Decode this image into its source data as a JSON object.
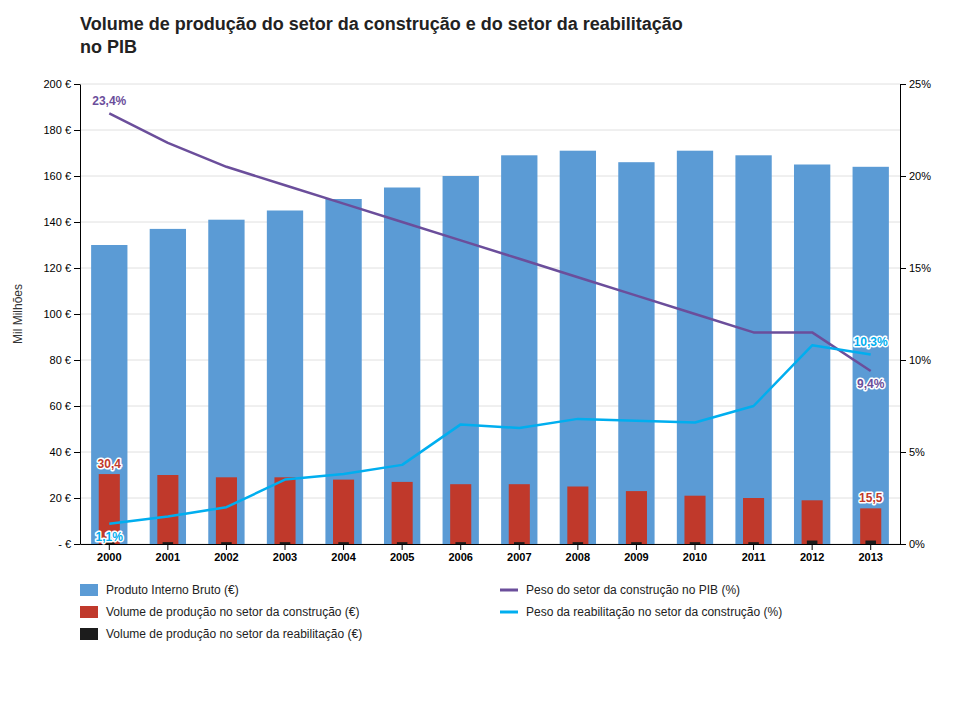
{
  "chart_data": {
    "type": "bar",
    "title": [
      "Volume de produção do setor da construção e do setor da reabilitação",
      "no PIB"
    ],
    "ylabel": "Mil Milhões",
    "categories": [
      "2000",
      "2001",
      "2002",
      "2003",
      "2004",
      "2005",
      "2006",
      "2007",
      "2008",
      "2009",
      "2010",
      "2011",
      "2012",
      "2013"
    ],
    "series": [
      {
        "name": "Produto Interno Bruto (€)",
        "type": "bar",
        "color": "#5B9BD5",
        "values": [
          130,
          137,
          141,
          145,
          150,
          155,
          160,
          169,
          171,
          166,
          171,
          169,
          165,
          164
        ]
      },
      {
        "name": "Volume de produção no setor da construção (€)",
        "type": "bar",
        "color": "#C0392B",
        "values": [
          30.4,
          30,
          29,
          29,
          28,
          27,
          26,
          26,
          25,
          23,
          21,
          20,
          19,
          15.5
        ],
        "value_labels": [
          "30,4",
          null,
          null,
          null,
          null,
          null,
          null,
          null,
          null,
          null,
          null,
          null,
          null,
          "15,5"
        ]
      },
      {
        "name": "Volume de produção no setor da reabilitação (€)",
        "type": "bar",
        "color": "#1C1C1C",
        "values": [
          0.8,
          0.8,
          0.8,
          0.8,
          0.8,
          0.8,
          0.8,
          0.8,
          0.8,
          0.8,
          0.8,
          0.8,
          1.5,
          1.5
        ]
      },
      {
        "name": "Peso do setor da construção no PIB (%)",
        "type": "line",
        "axis": "y2",
        "color": "#6B4E9B",
        "values": [
          23.4,
          21.8,
          20.5,
          19.5,
          18.5,
          17.5,
          16.5,
          15.5,
          14.5,
          13.5,
          12.5,
          11.5,
          11.5,
          9.4
        ],
        "value_labels": [
          "23,4%",
          null,
          null,
          null,
          null,
          null,
          null,
          null,
          null,
          null,
          null,
          null,
          null,
          "9,4%"
        ]
      },
      {
        "name": "Peso da reabilitação no setor da construção (%)",
        "type": "line",
        "axis": "y2",
        "color": "#00AEEF",
        "values": [
          1.1,
          1.5,
          2.0,
          3.5,
          3.8,
          4.3,
          6.5,
          6.3,
          6.8,
          6.7,
          6.6,
          7.5,
          10.8,
          10.3
        ],
        "value_labels": [
          "1,1%",
          null,
          null,
          null,
          null,
          null,
          null,
          null,
          null,
          null,
          null,
          null,
          null,
          "10,3%"
        ]
      }
    ],
    "ylim": [
      0,
      200
    ],
    "yticks": [
      {
        "value": 0,
        "label": "- €"
      },
      {
        "value": 20,
        "label": "20 €"
      },
      {
        "value": 40,
        "label": "40 €"
      },
      {
        "value": 60,
        "label": "60 €"
      },
      {
        "value": 80,
        "label": "80 €"
      },
      {
        "value": 100,
        "label": "100 €"
      },
      {
        "value": 120,
        "label": "120 €"
      },
      {
        "value": 140,
        "label": "140 €"
      },
      {
        "value": 160,
        "label": "160 €"
      },
      {
        "value": 180,
        "label": "180 €"
      },
      {
        "value": 200,
        "label": "200 €"
      }
    ],
    "y2lim": [
      0,
      25
    ],
    "y2ticks": [
      {
        "value": 0,
        "label": "0%"
      },
      {
        "value": 5,
        "label": "5%"
      },
      {
        "value": 10,
        "label": "10%"
      },
      {
        "value": 15,
        "label": "15%"
      },
      {
        "value": 20,
        "label": "20%"
      },
      {
        "value": 25,
        "label": "25%"
      }
    ],
    "grid": true,
    "legend": "bottom"
  }
}
